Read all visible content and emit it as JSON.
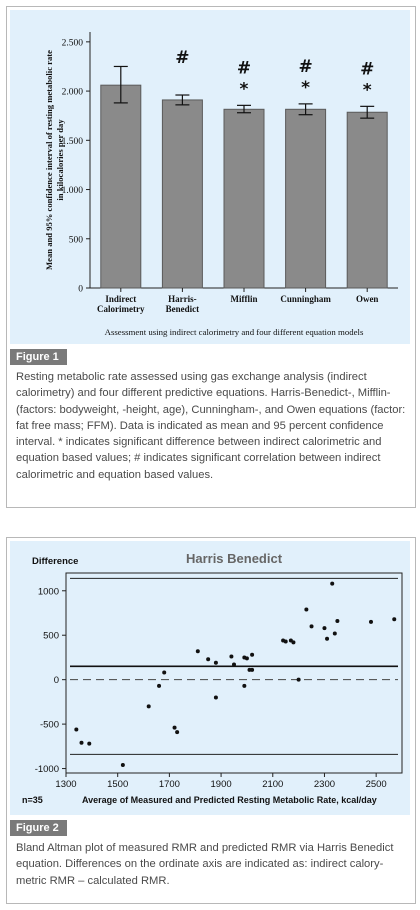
{
  "figure1": {
    "tag": "Figure 1",
    "caption": "Resting metabolic rate assessed using gas exchange analysis (indirect calorimetry) and four different predictive equations. Harris-Benedict-, Mifflin- (factors: bodyweight, -height, age), Cunningham-, and Owen equations (factor: fat free mass; FFM). Data is indicated as mean and 95 percent confidence interval. * indicates significant difference between indirect calorimetric and equation based values; # indicates significant correlation between indirect calorimetric and equation based values.",
    "chart_data": {
      "type": "bar",
      "categories": [
        "Indirect Calorimetry",
        "Harris-Benedict",
        "Mifflin",
        "Cunningham",
        "Owen"
      ],
      "category_lines": [
        [
          "Indirect",
          "Calorimetry"
        ],
        [
          "Harris-",
          "Benedict"
        ],
        [
          "Mifflin"
        ],
        [
          "Cunningham"
        ],
        [
          "Owen"
        ]
      ],
      "values": [
        2060,
        1910,
        1815,
        1815,
        1785
      ],
      "ci_low": [
        1880,
        1860,
        1780,
        1760,
        1725
      ],
      "ci_high": [
        2250,
        1960,
        1855,
        1870,
        1845
      ],
      "annotations": [
        [],
        [
          "#"
        ],
        [
          "#",
          "*"
        ],
        [
          "#",
          "*"
        ],
        [
          "#",
          "*"
        ]
      ],
      "xlabel": "Assessment using indirect calorimetry and four different equation models",
      "ylabel": "Mean and 95% confidence interval of resting metabolic rate in kilocalories per day",
      "ylim": [
        0,
        2600
      ],
      "yticks": [
        0,
        500,
        1000,
        1500,
        2000,
        2500
      ],
      "ytick_labels": [
        "0",
        "500",
        "1.000",
        "1.500",
        "2.000",
        "2.500"
      ],
      "bar_color": "#8a8a8a",
      "background": "#e1f0fb"
    }
  },
  "figure2": {
    "tag": "Figure 2",
    "caption": "Bland Altman plot of measured RMR and predicted RMR via Harris Benedict equation. Differences on the ordinate axis are indicated as: indirect calory-metric RMR – calculated RMR.",
    "chart_data": {
      "type": "scatter",
      "title": "Harris Benedict",
      "ylabel": "Difference",
      "xlabel": "Average of Measured and Predicted Resting Metabolic Rate, kcal/day",
      "n_label": "n=35",
      "xlim": [
        1300,
        2600
      ],
      "ylim": [
        -1050,
        1200
      ],
      "xticks": [
        1300,
        1500,
        1700,
        1900,
        2100,
        2300,
        2500
      ],
      "yticks": [
        -1000,
        -500,
        0,
        500,
        1000
      ],
      "mean_line": 150,
      "upper_limit": 1140,
      "lower_limit": -840,
      "zero_line": 0,
      "points": [
        {
          "x": 1340,
          "y": -560
        },
        {
          "x": 1360,
          "y": -710
        },
        {
          "x": 1390,
          "y": -720
        },
        {
          "x": 1520,
          "y": -960
        },
        {
          "x": 1620,
          "y": -300
        },
        {
          "x": 1660,
          "y": -70
        },
        {
          "x": 1680,
          "y": 80
        },
        {
          "x": 1720,
          "y": -540
        },
        {
          "x": 1730,
          "y": -590
        },
        {
          "x": 1810,
          "y": 320
        },
        {
          "x": 1850,
          "y": 230
        },
        {
          "x": 1880,
          "y": 190
        },
        {
          "x": 1880,
          "y": -200
        },
        {
          "x": 1940,
          "y": 260
        },
        {
          "x": 1950,
          "y": 170
        },
        {
          "x": 1990,
          "y": 250
        },
        {
          "x": 1990,
          "y": -70
        },
        {
          "x": 2000,
          "y": 240
        },
        {
          "x": 2010,
          "y": 110
        },
        {
          "x": 2020,
          "y": 110
        },
        {
          "x": 2020,
          "y": 280
        },
        {
          "x": 2140,
          "y": 440
        },
        {
          "x": 2150,
          "y": 430
        },
        {
          "x": 2170,
          "y": 440
        },
        {
          "x": 2180,
          "y": 420
        },
        {
          "x": 2200,
          "y": 0
        },
        {
          "x": 2230,
          "y": 790
        },
        {
          "x": 2250,
          "y": 600
        },
        {
          "x": 2300,
          "y": 580
        },
        {
          "x": 2310,
          "y": 460
        },
        {
          "x": 2330,
          "y": 1080
        },
        {
          "x": 2340,
          "y": 520
        },
        {
          "x": 2350,
          "y": 660
        },
        {
          "x": 2480,
          "y": 650
        },
        {
          "x": 2570,
          "y": 680
        }
      ]
    }
  }
}
